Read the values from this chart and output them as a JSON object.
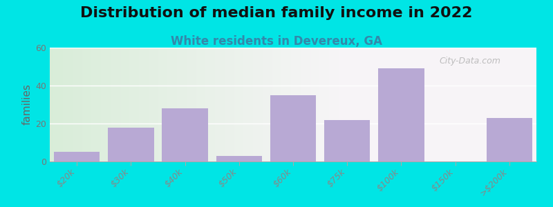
{
  "title": "Distribution of median family income in 2022",
  "subtitle": "White residents in Devereux, GA",
  "ylabel": "families",
  "categories": [
    "$20k",
    "$30k",
    "$40k",
    "$50k",
    "$60k",
    "$75k",
    "$100k",
    "$150k",
    ">$200k"
  ],
  "values": [
    5,
    18,
    28,
    3,
    35,
    22,
    49,
    0,
    23
  ],
  "bar_color": "#b8a9d4",
  "background_outer": "#00e5e5",
  "ylim": [
    0,
    60
  ],
  "yticks": [
    0,
    20,
    40,
    60
  ],
  "title_fontsize": 16,
  "subtitle_fontsize": 12,
  "ylabel_fontsize": 11,
  "tick_fontsize": 9,
  "bar_width": 0.85,
  "watermark": "City-Data.com"
}
